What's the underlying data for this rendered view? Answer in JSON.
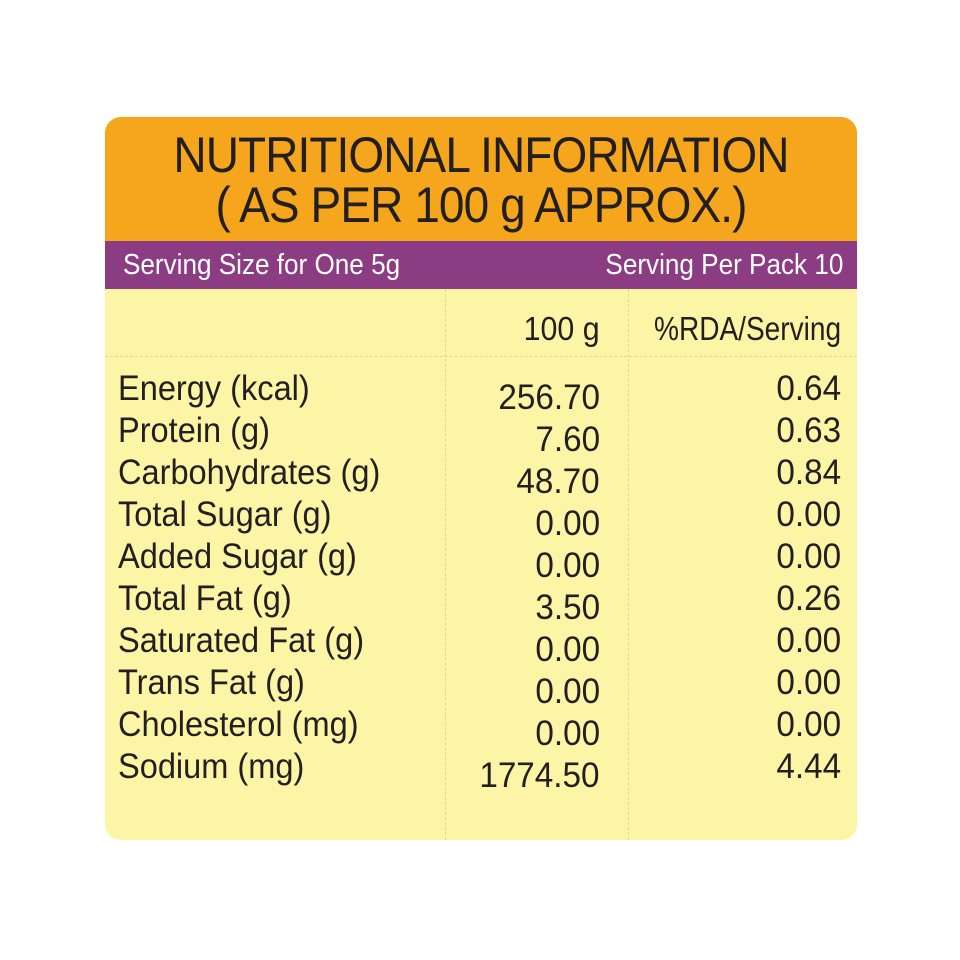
{
  "panel": {
    "title_line1": "NUTRITIONAL INFORMATION",
    "title_line2": "( AS PER 100 g APPROX.)",
    "serving_size": "Serving Size for One 5g",
    "serving_per_pack": "Serving Per Pack 10",
    "colors": {
      "title_band": "#f5a61c",
      "serving_band": "#8c3c82",
      "table_background": "#fcf5a6"
    }
  },
  "table": {
    "columns": [
      "100 g",
      "%RDA/Serving"
    ],
    "rows": [
      {
        "name": "Energy (kcal)",
        "per_100g": "256.70",
        "rda": "0.64"
      },
      {
        "name": "Protein (g)",
        "per_100g": "7.60",
        "rda": "0.63"
      },
      {
        "name": "Carbohydrates (g)",
        "per_100g": "48.70",
        "rda": "0.84"
      },
      {
        "name": "Total Sugar (g)",
        "per_100g": "0.00",
        "rda": "0.00"
      },
      {
        "name": "Added Sugar (g)",
        "per_100g": "0.00",
        "rda": "0.00"
      },
      {
        "name": "Total Fat (g)",
        "per_100g": "3.50",
        "rda": "0.26"
      },
      {
        "name": "Saturated Fat (g)",
        "per_100g": "0.00",
        "rda": "0.00"
      },
      {
        "name": "Trans Fat (g)",
        "per_100g": "0.00",
        "rda": "0.00"
      },
      {
        "name": "Cholesterol (mg)",
        "per_100g": "0.00",
        "rda": "0.00"
      },
      {
        "name": "Sodium (mg)",
        "per_100g": "1774.50",
        "rda": "4.44"
      }
    ]
  }
}
